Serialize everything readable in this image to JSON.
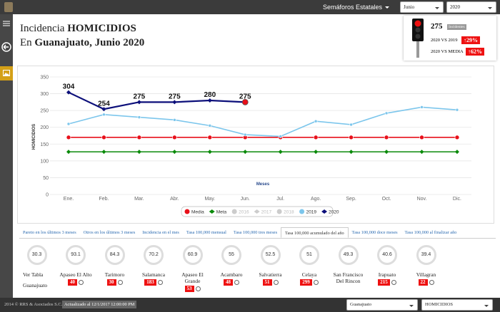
{
  "topbar": {
    "menu": "Semáforos Estatales",
    "month": "Junio",
    "year": "2020"
  },
  "header": {
    "line1_prefix": "Incidencia",
    "line1_bold": "HOMICIDIOS",
    "line2_prefix": "En",
    "line2_bold": "Guanajuato, Junio 2020"
  },
  "summary": {
    "total": "275",
    "total_label": "Incidentes",
    "vs_2019_label": "2020 VS 2019",
    "vs_2019": "29%",
    "vs_media_label": "2020 VS MEDIA",
    "vs_media": "62%"
  },
  "chart_data": {
    "type": "line",
    "xlabel": "Meses",
    "ylabel": "HOMICIDIOS",
    "categories": [
      "Ene.",
      "Feb.",
      "Mar.",
      "Abr.",
      "May.",
      "Jun.",
      "Jul.",
      "Ago.",
      "Sep.",
      "Oct.",
      "Nov.",
      "Dic."
    ],
    "ylim": [
      0,
      350
    ],
    "yticks": [
      0,
      50,
      100,
      150,
      200,
      250,
      300,
      350
    ],
    "grid": true,
    "series": [
      {
        "name": "Media",
        "color": "#e8101a",
        "marker": "circle",
        "values": [
          170,
          170,
          170,
          170,
          170,
          170,
          170,
          170,
          170,
          170,
          170,
          170
        ]
      },
      {
        "name": "Meta",
        "color": "#0a8a0a",
        "marker": "diamond",
        "values": [
          127,
          127,
          127,
          127,
          127,
          127,
          127,
          127,
          127,
          127,
          127,
          127
        ]
      },
      {
        "name": "2016",
        "color": "#cccccc",
        "marker": "circle",
        "hidden": true
      },
      {
        "name": "2017",
        "color": "#cccccc",
        "marker": "diamond",
        "hidden": true
      },
      {
        "name": "2018",
        "color": "#cccccc",
        "marker": "circle",
        "hidden": true
      },
      {
        "name": "2019",
        "color": "#7cc6ec",
        "marker": "circle",
        "values": [
          210,
          238,
          230,
          222,
          205,
          178,
          173,
          218,
          208,
          242,
          260,
          252
        ]
      },
      {
        "name": "2020",
        "color": "#0c0f7a",
        "marker": "diamond",
        "data_labels": true,
        "values": [
          304,
          254,
          275,
          275,
          280,
          275,
          null,
          null,
          null,
          null,
          null,
          null
        ]
      }
    ]
  },
  "tabs": [
    "Pareto en los últimos 3 meses",
    "Otros en los últimos 3 meses",
    "Incidencia en el mes",
    "Tasa 100,000 mensual",
    "Tasa 100,000 tres meses",
    "Tasa 100,000 acumulado del año",
    "Tasa 100,000 doce meses",
    "Tasa 100,000 al finalizar año"
  ],
  "active_tab": 5,
  "view_table": "Ver Tabla",
  "cards": [
    {
      "value": "30.3",
      "name": "Guanajuato"
    },
    {
      "value": "93.1",
      "name": "Apaseo El Alto",
      "count": "40"
    },
    {
      "value": "84.3",
      "name": "Tarimoro",
      "count": "30"
    },
    {
      "value": "70.2",
      "name": "Salamanca",
      "count": "183"
    },
    {
      "value": "60.9",
      "name": "Apaseo El Grande",
      "count": "53"
    },
    {
      "value": "55",
      "name": "Acambaro",
      "count": "48"
    },
    {
      "value": "52.5",
      "name": "Salvatierra",
      "count": "51"
    },
    {
      "value": "51",
      "name": "Celaya",
      "count": "299"
    },
    {
      "value": "49.3",
      "name": "San Francisco Del Rincon"
    },
    {
      "value": "40.6",
      "name": "Irapuato",
      "count": "215"
    },
    {
      "value": "39.4",
      "name": "Villagran",
      "count": "22"
    }
  ],
  "footer": {
    "copyright": "2014 © RRS & Asociados S.C.",
    "updated": "Actualizado al 12/1/2017 12:00:00 PM",
    "state": "Guanajuato",
    "crime": "HOMICIDIOS"
  }
}
